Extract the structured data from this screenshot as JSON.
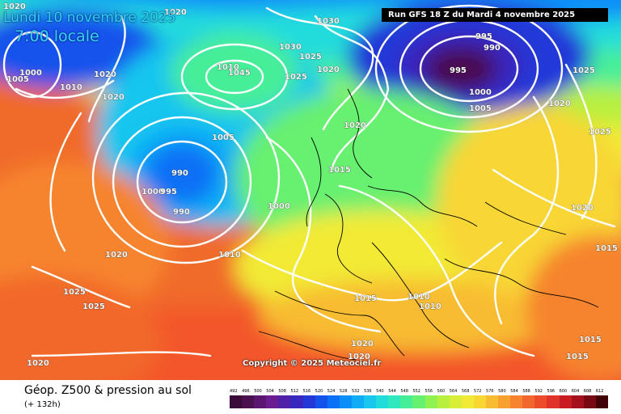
{
  "header": {
    "date_title": "Lundi 10 novembre 2025",
    "local_time": "7:00 locale",
    "run_info": "Run GFS 18 Z du Mardi 4 novembre 2025"
  },
  "map": {
    "copyright": "Copyright © 2025 Meteociel.fr",
    "isobar_labels": [
      "1020",
      "1020",
      "1030",
      "1000",
      "1005",
      "1010",
      "1020",
      "1020",
      "1010",
      "1045",
      "1030",
      "1025",
      "1025",
      "1020",
      "995",
      "990",
      "995",
      "1000",
      "1005",
      "1025",
      "1020",
      "1020",
      "1005",
      "1015",
      "990",
      "1000",
      "995",
      "990",
      "1000",
      "1020",
      "1010",
      "1025",
      "1025",
      "1020",
      "1015",
      "1010",
      "1010",
      "1020",
      "1020",
      "1020",
      "1015",
      "1015",
      "1015",
      "1025"
    ]
  },
  "footer": {
    "product_title": "Géop. Z500 & pression au sol",
    "lead_time": "(+ 132h)"
  },
  "legend": {
    "labels": [
      "492",
      "496",
      "500",
      "504",
      "508",
      "512",
      "516",
      "520",
      "524",
      "528",
      "532",
      "536",
      "540",
      "544",
      "548",
      "552",
      "556",
      "560",
      "564",
      "568",
      "572",
      "576",
      "580",
      "584",
      "588",
      "592",
      "596",
      "600",
      "604",
      "608",
      "612"
    ],
    "colors": [
      "#3b0b3a",
      "#4a1050",
      "#5a1670",
      "#6a1c90",
      "#5020a8",
      "#3828c0",
      "#2438d8",
      "#1452ec",
      "#0a70f6",
      "#0a8ef8",
      "#10acf6",
      "#18c6ee",
      "#22dcdc",
      "#30e8c0",
      "#46ee98",
      "#68f070",
      "#90f250",
      "#b8f040",
      "#d8ee38",
      "#f2ea36",
      "#f8d634",
      "#f8bc32",
      "#f8a030",
      "#f6842e",
      "#f2682c",
      "#ec4c2a",
      "#e03228",
      "#c81c22",
      "#a4101c",
      "#780814",
      "#400208"
    ]
  }
}
